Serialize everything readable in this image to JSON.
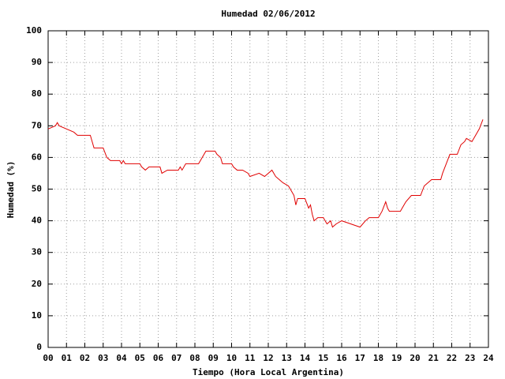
{
  "chart_data": {
    "type": "line",
    "title": "Humedad 02/06/2012",
    "xlabel": "Tiempo (Hora Local Argentina)",
    "ylabel": "Humedad (%)",
    "color": "#e00000",
    "grid": true,
    "xlim": [
      0,
      24
    ],
    "xticks": [
      {
        "value": 0,
        "label": "00"
      },
      {
        "value": 1,
        "label": "01"
      },
      {
        "value": 2,
        "label": "02"
      },
      {
        "value": 3,
        "label": "03"
      },
      {
        "value": 4,
        "label": "04"
      },
      {
        "value": 5,
        "label": "05"
      },
      {
        "value": 6,
        "label": "06"
      },
      {
        "value": 7,
        "label": "07"
      },
      {
        "value": 8,
        "label": "08"
      },
      {
        "value": 9,
        "label": "09"
      },
      10,
      11,
      12,
      13,
      14,
      15,
      16,
      17,
      18,
      19,
      20,
      21,
      22,
      23,
      24
    ],
    "ylim": [
      0,
      100
    ],
    "yticks": [
      0,
      10,
      20,
      30,
      40,
      50,
      60,
      70,
      80,
      90,
      100
    ],
    "x": [
      0.0,
      0.4,
      0.5,
      0.6,
      1.0,
      1.4,
      1.6,
      2.3,
      2.4,
      2.5,
      3.0,
      3.2,
      3.4,
      3.9,
      4.0,
      4.1,
      4.2,
      5.0,
      5.1,
      5.3,
      5.5,
      6.1,
      6.2,
      6.5,
      7.1,
      7.2,
      7.3,
      7.5,
      8.2,
      8.4,
      8.6,
      9.1,
      9.2,
      9.4,
      9.5,
      10.0,
      10.1,
      10.3,
      10.6,
      10.9,
      11.0,
      11.5,
      11.8,
      12.0,
      12.2,
      12.4,
      12.6,
      12.8,
      13.1,
      13.3,
      13.4,
      13.5,
      13.6,
      14.0,
      14.2,
      14.3,
      14.4,
      14.5,
      14.7,
      15.0,
      15.2,
      15.4,
      15.5,
      15.7,
      16.0,
      16.5,
      17.0,
      17.3,
      17.5,
      18.0,
      18.2,
      18.4,
      18.5,
      18.6,
      19.2,
      19.5,
      19.8,
      20.3,
      20.5,
      20.7,
      20.9,
      21.4,
      21.5,
      21.7,
      21.9,
      22.3,
      22.5,
      22.7,
      22.8,
      23.1,
      23.3,
      23.5,
      23.7
    ],
    "values": [
      69,
      70,
      71,
      70,
      69,
      68,
      67,
      67,
      65,
      63,
      63,
      60,
      59,
      59,
      58,
      59,
      58,
      58,
      57,
      56,
      57,
      57,
      55,
      56,
      56,
      57,
      56,
      58,
      58,
      60,
      62,
      62,
      61,
      60,
      58,
      58,
      57,
      56,
      56,
      55,
      54,
      55,
      54,
      55,
      56,
      54,
      53,
      52,
      51,
      49,
      48,
      45,
      47,
      47,
      44,
      45,
      42,
      40,
      41,
      41,
      39,
      40,
      38,
      39,
      40,
      39,
      38,
      40,
      41,
      41,
      43,
      46,
      44,
      43,
      43,
      46,
      48,
      48,
      51,
      52,
      53,
      53,
      55,
      58,
      61,
      61,
      64,
      65,
      66,
      65,
      67,
      69,
      72
    ]
  }
}
